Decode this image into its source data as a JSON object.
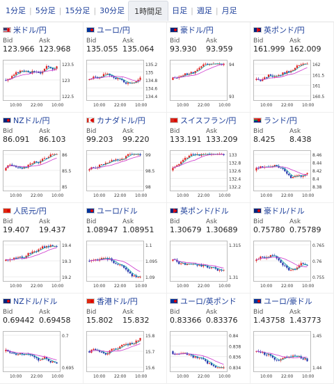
{
  "tabs": [
    {
      "label": "1分足",
      "active": false
    },
    {
      "label": "5分足",
      "active": false
    },
    {
      "label": "15分足",
      "active": false
    },
    {
      "label": "30分足",
      "active": false
    },
    {
      "label": "1時間足",
      "active": true
    },
    {
      "label": "日足",
      "active": false
    },
    {
      "label": "週足",
      "active": false
    },
    {
      "label": "月足",
      "active": false
    }
  ],
  "quote_labels": {
    "bid": "Bid",
    "ask": "Ask"
  },
  "x_ticks": [
    "10:00",
    "22:00",
    "10:00"
  ],
  "colors": {
    "up": "#e02020",
    "down": "#2233aa",
    "ma_short": "#11aaaa",
    "ma_long": "#cc33cc",
    "link": "#1d3f9a"
  },
  "cards": [
    {
      "name": "米ドル/円",
      "flag": "us",
      "bid": "123.966",
      "ask": "123.968",
      "yticks": [
        "123.5",
        "123",
        "122.5"
      ],
      "seed": 3,
      "trend": "up"
    },
    {
      "name": "ユーロ/円",
      "flag": "eu",
      "bid": "135.055",
      "ask": "135.064",
      "yticks": [
        "135.2",
        "135",
        "134.8",
        "134.6",
        "134.4"
      ],
      "seed": 7,
      "trend": "mixed"
    },
    {
      "name": "豪ドル/円",
      "flag": "au",
      "bid": "93.930",
      "ask": "93.959",
      "yticks": [
        "94",
        "93"
      ],
      "seed": 11,
      "trend": "up"
    },
    {
      "name": "英ポンド/円",
      "flag": "gb",
      "bid": "161.999",
      "ask": "162.009",
      "yticks": [
        "162",
        "161.5",
        "161",
        "160.5"
      ],
      "seed": 13,
      "trend": "up"
    },
    {
      "name": "NZドル/円",
      "flag": "nz",
      "bid": "86.091",
      "ask": "86.103",
      "yticks": [
        "86",
        "85.5",
        "85"
      ],
      "seed": 17,
      "trend": "up"
    },
    {
      "name": "カナダドル/円",
      "flag": "ca",
      "bid": "99.203",
      "ask": "99.220",
      "yticks": [
        "99",
        "98.5",
        "98"
      ],
      "seed": 19,
      "trend": "up"
    },
    {
      "name": "スイスフラン/円",
      "flag": "ch",
      "bid": "133.191",
      "ask": "133.209",
      "yticks": [
        "133",
        "132.8",
        "132.6",
        "132.4",
        "132.2"
      ],
      "seed": 23,
      "trend": "up"
    },
    {
      "name": "ランド/円",
      "flag": "za",
      "bid": "8.425",
      "ask": "8.438",
      "yticks": [
        "8.46",
        "8.44",
        "8.42",
        "8.4",
        "8.38"
      ],
      "seed": 29,
      "trend": "mixed"
    },
    {
      "name": "人民元/円",
      "flag": "cn",
      "bid": "19.407",
      "ask": "19.437",
      "yticks": [
        "19.4",
        "19.3",
        "19.2"
      ],
      "seed": 31,
      "trend": "up"
    },
    {
      "name": "ユーロ/ドル",
      "flag": "eu",
      "bid": "1.08947",
      "ask": "1.08951",
      "yticks": [
        "1.1",
        "1.095",
        "1.09"
      ],
      "seed": 37,
      "trend": "down"
    },
    {
      "name": "英ポンド/ドル",
      "flag": "gb",
      "bid": "1.30679",
      "ask": "1.30689",
      "yticks": [
        "1.315",
        "1.31"
      ],
      "seed": 41,
      "trend": "down"
    },
    {
      "name": "豪ドル/ドル",
      "flag": "au",
      "bid": "0.75780",
      "ask": "0.75789",
      "yticks": [
        "0.765",
        "0.76",
        "0.755"
      ],
      "seed": 43,
      "trend": "mixed"
    },
    {
      "name": "NZドル/ドル",
      "flag": "nz",
      "bid": "0.69442",
      "ask": "0.69458",
      "yticks": [
        "0.7",
        "0.695"
      ],
      "seed": 47,
      "trend": "down"
    },
    {
      "name": "香港ドル/円",
      "flag": "hk",
      "bid": "15.802",
      "ask": "15.832",
      "yticks": [
        "15.8",
        "15.7",
        "15.6"
      ],
      "seed": 53,
      "trend": "up"
    },
    {
      "name": "ユーロ/英ポンド",
      "flag": "eu",
      "bid": "0.83366",
      "ask": "0.83376",
      "yticks": [
        "0.84",
        "0.838",
        "0.836",
        "0.834"
      ],
      "seed": 59,
      "trend": "down"
    },
    {
      "name": "ユーロ/豪ドル",
      "flag": "eu",
      "bid": "1.43758",
      "ask": "1.43773",
      "yticks": [
        "1.45",
        "1.44"
      ],
      "seed": 61,
      "trend": "down"
    }
  ]
}
